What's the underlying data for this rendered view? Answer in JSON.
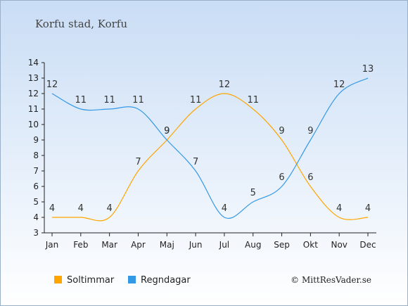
{
  "chart_data": {
    "type": "line",
    "title": "Korfu stad, Korfu",
    "categories": [
      "Jan",
      "Feb",
      "Mar",
      "Apr",
      "Maj",
      "Jun",
      "Jul",
      "Aug",
      "Sep",
      "Okt",
      "Nov",
      "Dec"
    ],
    "ylim": [
      3,
      14
    ],
    "yticks": [
      3,
      4,
      5,
      6,
      7,
      8,
      9,
      10,
      11,
      12,
      13,
      14
    ],
    "grid": false,
    "legend_position": "bottom-left",
    "series": [
      {
        "name": "Soltimmar",
        "color": "#FFA500",
        "values": [
          4,
          4,
          4,
          7,
          9,
          11,
          12,
          11,
          9,
          6,
          4,
          4
        ]
      },
      {
        "name": "Regndagar",
        "color": "#3399E6",
        "values": [
          12,
          11,
          11,
          11,
          9,
          7,
          4,
          5,
          6,
          9,
          12,
          13
        ]
      }
    ],
    "credit": "© MittResVader.se"
  }
}
